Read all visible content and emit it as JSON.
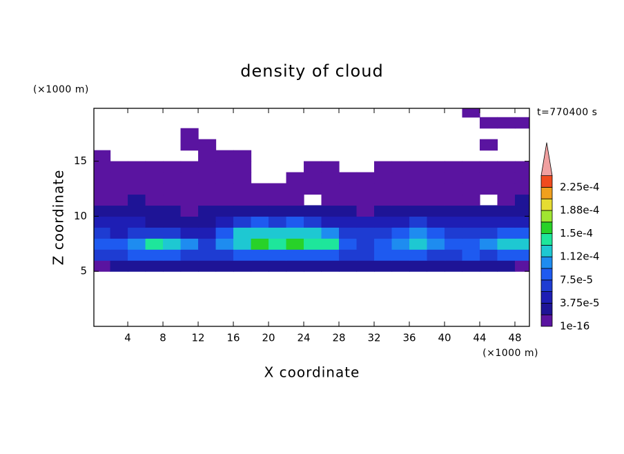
{
  "chart_data": {
    "type": "contour",
    "title": "density of cloud",
    "xlabel": "X coordinate",
    "ylabel": "Z coordinate",
    "x_unit": "(×1000 m)",
    "y_unit": "(×1000 m)",
    "annotation": "t=770400 s",
    "xlim": [
      0.15,
      49.65
    ],
    "ylim": [
      0,
      19.8
    ],
    "xticks": [
      4,
      8,
      12,
      16,
      20,
      24,
      28,
      32,
      36,
      40,
      44,
      48
    ],
    "yticks": [
      5,
      10,
      15
    ],
    "x": [
      1,
      3,
      5,
      7,
      9,
      11,
      13,
      15,
      17,
      19,
      21,
      23,
      25,
      27,
      29,
      31,
      33,
      35,
      37,
      39,
      41,
      43,
      45,
      47,
      49
    ],
    "y": [
      5.5,
      6.5,
      7.5,
      8.5,
      9.5,
      10.5,
      11.5,
      12.5,
      13.5,
      14.5,
      15.5,
      16.5,
      17.5,
      18.5,
      19.5
    ],
    "values": [
      [
        5e-06,
        2.5e-05,
        2.5e-05,
        2.5e-05,
        2.5e-05,
        2.5e-05,
        2.5e-05,
        2.5e-05,
        2.5e-05,
        2.5e-05,
        2.5e-05,
        2.5e-05,
        2.5e-05,
        2.5e-05,
        2.5e-05,
        2.5e-05,
        2.5e-05,
        2.5e-05,
        2.5e-05,
        2.5e-05,
        2.5e-05,
        2.5e-05,
        2.5e-05,
        2.5e-05,
        5e-06
      ],
      [
        6.5e-05,
        6.5e-05,
        8.5e-05,
        8.5e-05,
        8.5e-05,
        6.5e-05,
        6.5e-05,
        6.5e-05,
        8.5e-05,
        8.5e-05,
        8.5e-05,
        8.5e-05,
        8.5e-05,
        8.5e-05,
        6.5e-05,
        6.5e-05,
        8.5e-05,
        8.5e-05,
        8.5e-05,
        6.5e-05,
        6.5e-05,
        8.5e-05,
        6.5e-05,
        8.5e-05,
        8.5e-05
      ],
      [
        8.5e-05,
        8.5e-05,
        0.0001,
        0.00014,
        0.00012,
        0.0001,
        6.5e-05,
        0.0001,
        0.00012,
        0.00016,
        0.00014,
        0.00016,
        0.00014,
        0.00014,
        8.5e-05,
        6.5e-05,
        8.5e-05,
        0.0001,
        0.00012,
        0.0001,
        8.5e-05,
        8.5e-05,
        0.0001,
        0.00012,
        0.00012
      ],
      [
        6.5e-05,
        4.5e-05,
        6.5e-05,
        6.5e-05,
        6.5e-05,
        4.5e-05,
        4.5e-05,
        8.5e-05,
        0.00012,
        0.00012,
        0.00012,
        0.00012,
        0.00012,
        0.0001,
        6.5e-05,
        6.5e-05,
        6.5e-05,
        8.5e-05,
        0.0001,
        8.5e-05,
        6.5e-05,
        6.5e-05,
        6.5e-05,
        8.5e-05,
        8.5e-05
      ],
      [
        4.5e-05,
        4.5e-05,
        4.5e-05,
        2.5e-05,
        2.5e-05,
        2.5e-05,
        2.5e-05,
        4.5e-05,
        6.5e-05,
        8.5e-05,
        6.5e-05,
        8.5e-05,
        6.5e-05,
        4.5e-05,
        4.5e-05,
        4.5e-05,
        4.5e-05,
        4.5e-05,
        6.5e-05,
        4.5e-05,
        4.5e-05,
        4.5e-05,
        4.5e-05,
        4.5e-05,
        4.5e-05
      ],
      [
        2.5e-05,
        2.5e-05,
        2.5e-05,
        2.5e-05,
        2.5e-05,
        5e-06,
        2.5e-05,
        2.5e-05,
        2.5e-05,
        2.5e-05,
        2.5e-05,
        2.5e-05,
        2.5e-05,
        2.5e-05,
        2.5e-05,
        5e-06,
        2.5e-05,
        2.5e-05,
        2.5e-05,
        2.5e-05,
        2.5e-05,
        2.5e-05,
        2.5e-05,
        2.5e-05,
        2.5e-05
      ],
      [
        5e-06,
        5e-06,
        2.5e-05,
        5e-06,
        5e-06,
        5e-06,
        5e-06,
        5e-06,
        5e-06,
        5e-06,
        5e-06,
        5e-06,
        0,
        5e-06,
        5e-06,
        5e-06,
        5e-06,
        5e-06,
        5e-06,
        5e-06,
        5e-06,
        5e-06,
        0,
        5e-06,
        2.5e-05
      ],
      [
        5e-06,
        5e-06,
        5e-06,
        5e-06,
        5e-06,
        5e-06,
        5e-06,
        5e-06,
        5e-06,
        5e-06,
        5e-06,
        5e-06,
        5e-06,
        5e-06,
        5e-06,
        5e-06,
        5e-06,
        5e-06,
        5e-06,
        5e-06,
        5e-06,
        5e-06,
        5e-06,
        5e-06,
        5e-06
      ],
      [
        5e-06,
        5e-06,
        5e-06,
        5e-06,
        5e-06,
        5e-06,
        5e-06,
        5e-06,
        5e-06,
        0,
        0,
        5e-06,
        5e-06,
        5e-06,
        5e-06,
        5e-06,
        5e-06,
        5e-06,
        5e-06,
        5e-06,
        5e-06,
        5e-06,
        5e-06,
        5e-06,
        5e-06
      ],
      [
        5e-06,
        5e-06,
        5e-06,
        5e-06,
        5e-06,
        5e-06,
        5e-06,
        5e-06,
        5e-06,
        0,
        0,
        0,
        5e-06,
        5e-06,
        0,
        0,
        5e-06,
        5e-06,
        5e-06,
        5e-06,
        5e-06,
        5e-06,
        5e-06,
        5e-06,
        5e-06
      ],
      [
        5e-06,
        0,
        0,
        0,
        0,
        0,
        5e-06,
        5e-06,
        5e-06,
        0,
        0,
        0,
        0,
        0,
        0,
        0,
        0,
        0,
        0,
        0,
        0,
        0,
        0,
        0,
        0
      ],
      [
        0,
        0,
        0,
        0,
        0,
        5e-06,
        5e-06,
        0,
        0,
        0,
        0,
        0,
        0,
        0,
        0,
        0,
        0,
        0,
        0,
        0,
        0,
        0,
        5e-06,
        0,
        0
      ],
      [
        0,
        0,
        0,
        0,
        0,
        5e-06,
        0,
        0,
        0,
        0,
        0,
        0,
        0,
        0,
        0,
        0,
        0,
        0,
        0,
        0,
        0,
        0,
        0,
        0,
        0
      ],
      [
        0,
        0,
        0,
        0,
        0,
        0,
        0,
        0,
        0,
        0,
        0,
        0,
        0,
        0,
        0,
        0,
        0,
        0,
        0,
        0,
        0,
        0,
        5e-06,
        5e-06,
        5e-06
      ],
      [
        0,
        0,
        0,
        0,
        0,
        0,
        0,
        0,
        0,
        0,
        0,
        0,
        0,
        0,
        0,
        0,
        0,
        0,
        0,
        0,
        0,
        5e-06,
        0,
        0,
        0
      ]
    ],
    "colorbar": {
      "levels": [
        1e-16,
        1.875e-05,
        3.75e-05,
        5.625e-05,
        7.5e-05,
        9.375e-05,
        0.0001125,
        0.00013125,
        0.00015,
        0.00016875,
        0.0001875,
        0.00020625,
        0.000225
      ],
      "colors": [
        "#5a14a0",
        "#1e1496",
        "#1e1eb4",
        "#1e3cd2",
        "#1e5af0",
        "#1e8cf0",
        "#1ec8d2",
        "#1ee69b",
        "#28d228",
        "#a0e632",
        "#e6dc32",
        "#f0a01e",
        "#f04b1e"
      ],
      "extend_color": "#f0a0a0",
      "ticks": [
        1e-16,
        {
          "value": 3.75e-05,
          "label": "3.75e-5"
        },
        {
          "value": 7.5e-05,
          "label": "7.5e-5"
        },
        {
          "value": 0.000112,
          "label": "1.12e-4"
        },
        {
          "value": 0.00015,
          "label": "1.5e-4"
        },
        {
          "value": 0.000188,
          "label": "1.88e-4"
        },
        {
          "value": 0.000225,
          "label": "2.25e-4"
        }
      ]
    }
  }
}
